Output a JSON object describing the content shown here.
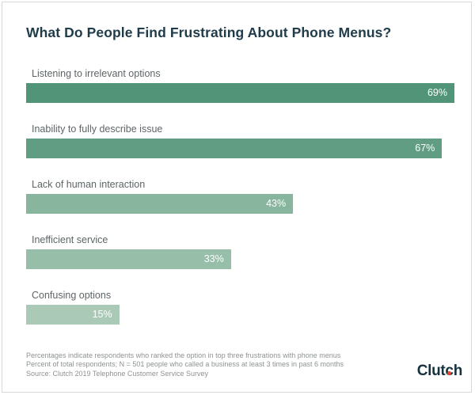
{
  "chart": {
    "title": "What Do People Find Frustrating About Phone Menus?"
  },
  "chart_data": {
    "type": "bar",
    "orientation": "horizontal",
    "title": "What Do People Find Frustrating About Phone Menus?",
    "categories": [
      "Listening to irrelevant options",
      "Inability to fully describe issue",
      "Lack of human interaction",
      "Inefficient service",
      "Confusing options"
    ],
    "values": [
      69,
      67,
      43,
      33,
      15
    ],
    "value_labels": [
      "69%",
      "67%",
      "43%",
      "33%",
      "15%"
    ],
    "xlabel": "",
    "ylabel": "",
    "xlim": [
      0,
      69
    ],
    "grid": false,
    "legend": false,
    "bar_colors": [
      "#519478",
      "#619d83",
      "#88b59d",
      "#97bea9",
      "#aac9b7"
    ],
    "value_label_color": "#ffffff"
  },
  "footnotes": {
    "lines": [
      "Percentages indicate respondents who ranked the option in top three frustrations with phone menus",
      "Percent of total respondents; N = 501 people who called a business at least 3 times in past 6 months",
      "Source: Clutch 2019 Telephone Customer Service Survey"
    ]
  },
  "logo": {
    "text": "Clutch",
    "dot_color": "#e8432d"
  },
  "colors": {
    "title": "#203c4b",
    "bar_label": "#5d6566",
    "footnote": "#8e9293",
    "card_border": "#d8d8d8",
    "logo": "#16323e"
  }
}
